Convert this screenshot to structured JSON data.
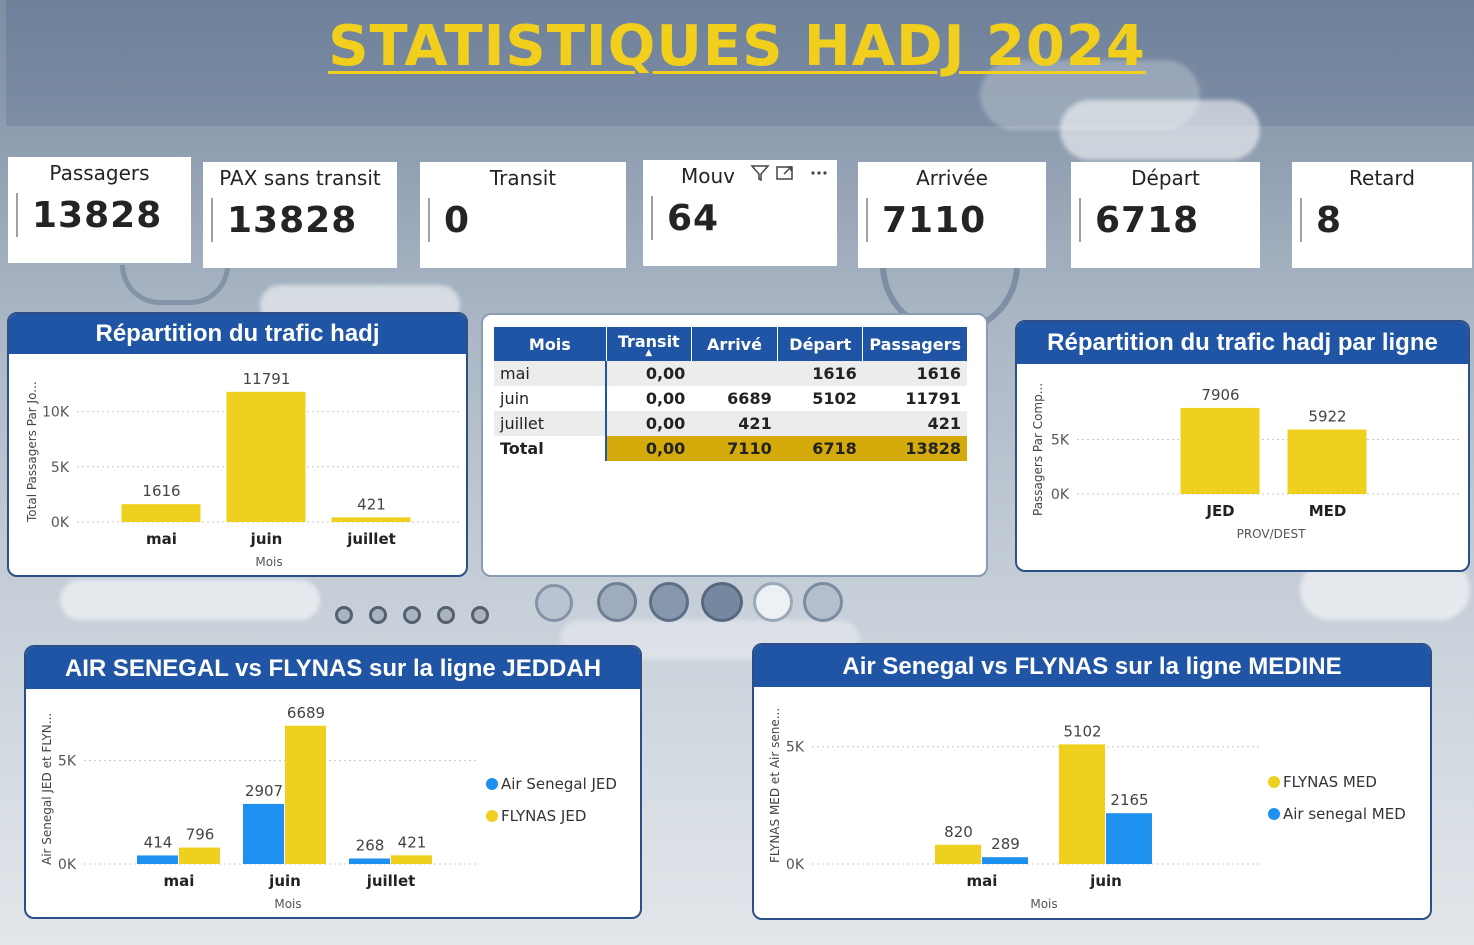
{
  "title": "STATISTIQUES HADJ 2024",
  "kpis": [
    {
      "label": "Passagers",
      "value": "13828"
    },
    {
      "label": "PAX sans transit",
      "value": "13828"
    },
    {
      "label": "Transit",
      "value": "0"
    },
    {
      "label": "Mouv",
      "value": "64"
    },
    {
      "label": "Arrivée",
      "value": "7110"
    },
    {
      "label": "Départ",
      "value": "6718"
    },
    {
      "label": "Retard",
      "value": "8"
    }
  ],
  "table": {
    "headers": [
      "Mois",
      "Transit",
      "Arrivé",
      "Départ",
      "Passagers"
    ],
    "rows": [
      [
        "mai",
        "0,00",
        "",
        "1616",
        "1616"
      ],
      [
        "juin",
        "0,00",
        "6689",
        "5102",
        "11791"
      ],
      [
        "juillet",
        "0,00",
        "421",
        "",
        "421"
      ]
    ],
    "total": [
      "Total",
      "0,00",
      "7110",
      "6718",
      "13828"
    ]
  },
  "colors": {
    "yellow": "#f0d01f",
    "blue": "#1e90f0",
    "header_blue": "#1f55a4",
    "total_gold": "#d4a90a"
  },
  "chart_data": [
    {
      "type": "bar",
      "title": "Répartition du trafic hadj",
      "categories": [
        "mai",
        "juin",
        "juillet"
      ],
      "values": [
        1616,
        11791,
        421
      ],
      "xlabel": "Mois",
      "ylabel": "Total Passagers Par Jo...",
      "yticks": [
        "0K",
        "5K",
        "10K"
      ],
      "ylim": [
        0,
        12500
      ]
    },
    {
      "type": "bar",
      "title": "Répartition du trafic hadj par ligne",
      "categories": [
        "JED",
        "MED"
      ],
      "values": [
        7906,
        5922
      ],
      "xlabel": "PROV/DEST",
      "ylabel": "Passagers Par Comp...",
      "yticks": [
        "0K",
        "5K"
      ],
      "ylim": [
        0,
        9000
      ]
    },
    {
      "type": "bar",
      "title": "AIR SENEGAL vs FLYNAS sur la ligne JEDDAH",
      "categories": [
        "mai",
        "juin",
        "juillet"
      ],
      "series": [
        {
          "name": "Air Senegal JED",
          "values": [
            414,
            2907,
            268
          ],
          "color": "#1e90f0"
        },
        {
          "name": "FLYNAS JED",
          "values": [
            796,
            6689,
            421
          ],
          "color": "#f0d01f"
        }
      ],
      "xlabel": "Mois",
      "ylabel": "Air Senegal JED et FLYN...",
      "yticks": [
        "0K",
        "5K"
      ],
      "ylim": [
        0,
        7500
      ],
      "legend": "right"
    },
    {
      "type": "bar",
      "title": "Air Senegal vs FLYNAS sur la ligne MEDINE",
      "categories": [
        "mai",
        "juin"
      ],
      "series": [
        {
          "name": "FLYNAS MED",
          "values": [
            820,
            5102
          ],
          "color": "#f0d01f"
        },
        {
          "name": "Air senegal MED",
          "values": [
            289,
            2165
          ],
          "color": "#1e90f0"
        }
      ],
      "xlabel": "Mois",
      "ylabel": "FLYNAS MED et Air sene...",
      "yticks": [
        "0K",
        "5K"
      ],
      "ylim": [
        0,
        5500
      ],
      "legend": "right"
    }
  ]
}
